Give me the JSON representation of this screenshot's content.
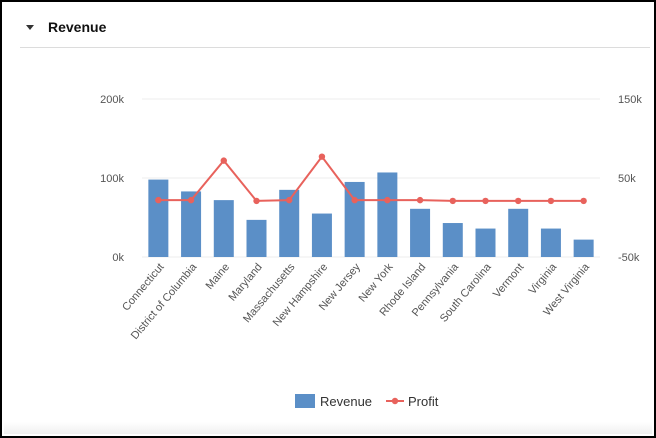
{
  "panel": {
    "title": "Revenue"
  },
  "colors": {
    "revenue": "#5b8fc7",
    "profit": "#e8625c",
    "axis_text": "#555555",
    "grid": "#eeeeee"
  },
  "icons": {
    "collapse": "caret-down-icon"
  },
  "chart_data": {
    "type": "bar",
    "categories": [
      "Connecticut",
      "District of Columbia",
      "Maine",
      "Maryland",
      "Massachusetts",
      "New Hampshire",
      "New Jersey",
      "New York",
      "Rhode Island",
      "Pennsylvania",
      "South Carolina",
      "Vermont",
      "Virginia",
      "West Virginia"
    ],
    "series": [
      {
        "name": "Revenue",
        "type": "bar",
        "axis": "left",
        "values": [
          98000,
          83000,
          72000,
          47000,
          85000,
          55000,
          95000,
          107000,
          61000,
          43000,
          36000,
          61000,
          36000,
          22000
        ]
      },
      {
        "name": "Profit",
        "type": "line",
        "axis": "right",
        "values": [
          22000,
          22000,
          72000,
          21000,
          22000,
          77000,
          22000,
          22000,
          22000,
          21000,
          21000,
          21000,
          21000,
          21000
        ]
      }
    ],
    "y_left": {
      "ticks": [
        0,
        100000,
        200000
      ],
      "tick_labels": [
        "0k",
        "100k",
        "200k"
      ],
      "range": [
        0,
        200000
      ]
    },
    "y_right": {
      "ticks": [
        -50000,
        50000,
        150000
      ],
      "tick_labels": [
        "-50k",
        "50k",
        "150k"
      ],
      "range": [
        -50000,
        150000
      ]
    },
    "grid": true,
    "legend": {
      "position": "bottom",
      "items": [
        "Revenue",
        "Profit"
      ]
    }
  }
}
